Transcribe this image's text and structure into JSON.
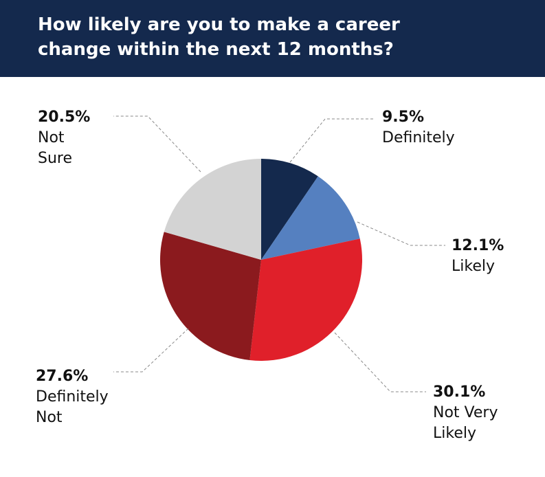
{
  "chart_data": {
    "type": "pie",
    "title": "How likely are you to make a career change within the next 12 months?",
    "categories": [
      "Definitely",
      "Likely",
      "Not Very Likely",
      "Definitely Not",
      "Not Sure"
    ],
    "values": [
      9.5,
      12.1,
      30.1,
      27.6,
      20.5
    ],
    "value_labels": [
      "9.5%",
      "12.1%",
      "30.1%",
      "27.6%",
      "20.5%"
    ],
    "colors": [
      "#14294d",
      "#5580c0",
      "#e0202a",
      "#8b1a1e",
      "#d3d3d3"
    ]
  }
}
